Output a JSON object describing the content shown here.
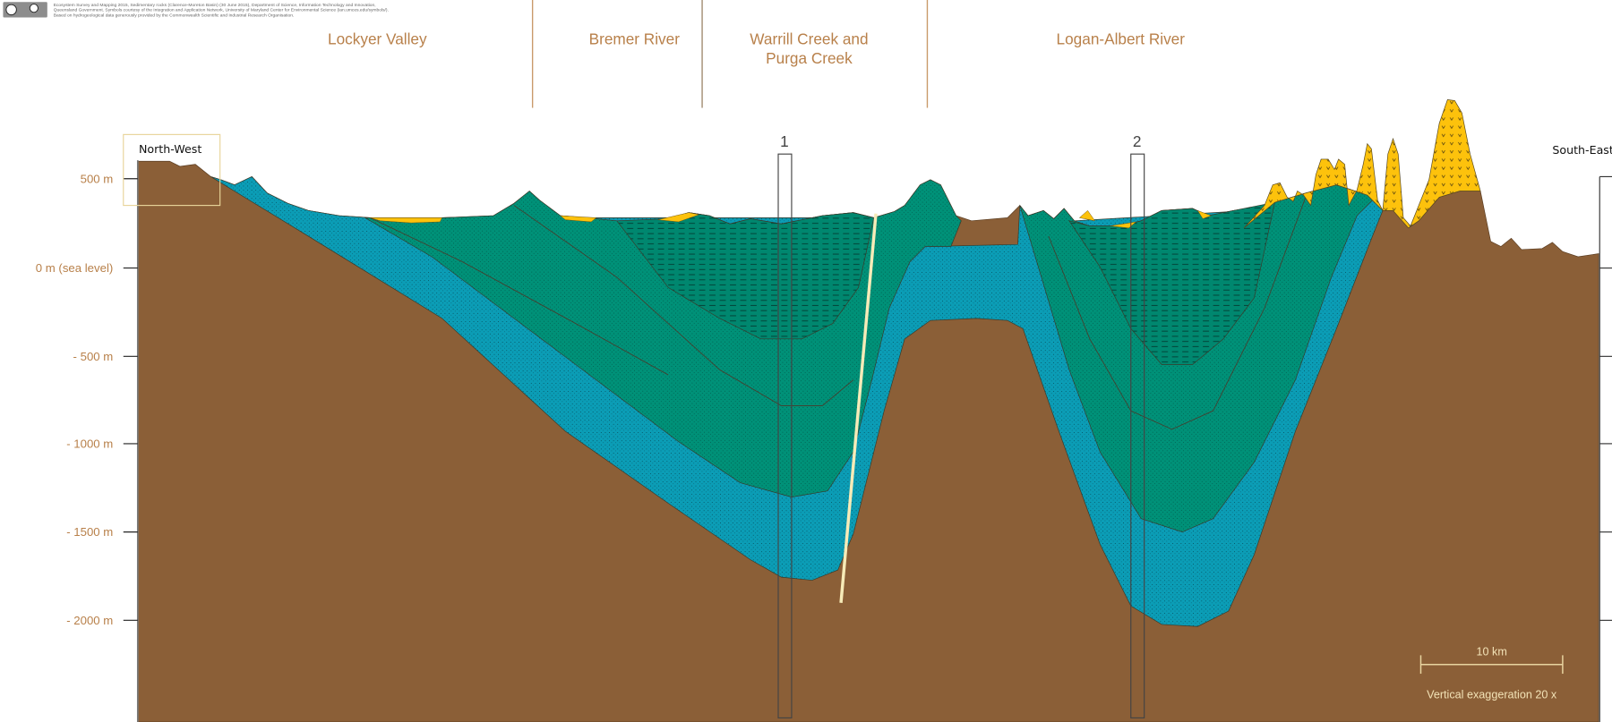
{
  "attribution": {
    "lines": [
      "Ecosystem Survey and Mapping 2015, Sedimentary rocks (Clarence-Moreton Basin) (30 June 2015), Department of Science, Information Technology and Innovation,",
      "Queensland Government. Symbols courtesy of the Integration and Application Network, University of Maryland Center for Environmental Science (ian.umces.edu/symbols/).",
      "Based on hydrogeological data generously provided by the Commonwealth Scientific and Industrial Research Organisation."
    ],
    "license_logo": "CC BY"
  },
  "regions": [
    {
      "label": "Lockyer Valley"
    },
    {
      "label": "Bremer River"
    },
    {
      "label": "Warrill Creek and",
      "label2": "Purga Creek"
    },
    {
      "label": "Logan-Albert River"
    }
  ],
  "directions": {
    "left": "North-West",
    "right": "South-East"
  },
  "elevation_axis": {
    "ticks": [
      "500 m",
      "0 m (sea level)",
      "- 500 m",
      "- 1000 m",
      "- 1500 m",
      "- 2000 m"
    ]
  },
  "boreholes": [
    {
      "label": "1"
    },
    {
      "label": "2"
    }
  ],
  "scale_bar": {
    "label": "10 km",
    "exaggeration": "Vertical exaggeration 20 x"
  },
  "colors": {
    "basement": "#8b5f37",
    "lower_sandstone": "#0b9db6",
    "upper_sandstone": "#009178",
    "mudstone": "#00876f",
    "alluvium": "#fdc20c",
    "fault": "#f6ebb8",
    "labels": "#b8804a"
  }
}
